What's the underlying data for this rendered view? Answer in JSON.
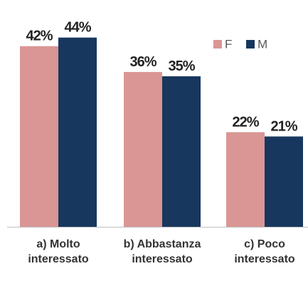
{
  "chart_data": {
    "type": "bar",
    "categories": [
      "a) Molto interessato",
      "b) Abbastanza interessato",
      "c) Poco interessato"
    ],
    "series": [
      {
        "name": "F",
        "color": "#d99694",
        "values": [
          42,
          36,
          22
        ],
        "value_labels": [
          "42%",
          "36%",
          "22%"
        ]
      },
      {
        "name": "M",
        "color": "#17375e",
        "values": [
          44,
          35,
          21
        ],
        "value_labels": [
          "44%",
          "35%",
          "21%"
        ]
      }
    ],
    "legend": "top-right"
  }
}
